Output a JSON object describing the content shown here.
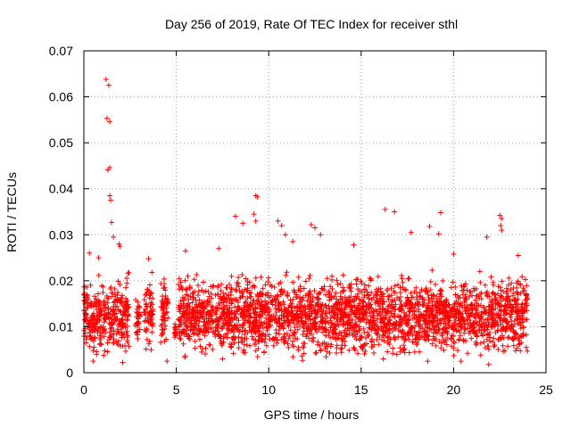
{
  "chart_data": {
    "type": "scatter",
    "title": "Day 256 of 2019, Rate Of TEC Index for receiver sthl",
    "xlabel": "GPS time / hours",
    "ylabel": "ROTI / TECUs",
    "xlim": [
      0,
      25
    ],
    "ylim": [
      0,
      0.07
    ],
    "xticks": [
      0,
      5,
      10,
      15,
      20,
      25
    ],
    "yticks": [
      0,
      0.01,
      0.02,
      0.03,
      0.04,
      0.05,
      0.06,
      0.07
    ],
    "xtick_labels": [
      "0",
      "5",
      "10",
      "15",
      "20",
      "25"
    ],
    "ytick_labels": [
      "0",
      "0.01",
      "0.02",
      "0.03",
      "0.04",
      "0.05",
      "0.06",
      "0.07"
    ],
    "grid": true,
    "marker": "+",
    "series_color": "#ff0000",
    "series": [
      {
        "name": "ROTI",
        "note": "dense cloud of points (values 0.002-0.025 TECU/s) spanning 0-24 h with gaps; listed below are envelope and outlier points",
        "points": [
          [
            1.2,
            0.0638
          ],
          [
            1.35,
            0.0625
          ],
          [
            1.25,
            0.0553
          ],
          [
            1.4,
            0.0546
          ],
          [
            1.3,
            0.0441
          ],
          [
            1.4,
            0.0446
          ],
          [
            1.4,
            0.0385
          ],
          [
            1.45,
            0.0375
          ],
          [
            1.5,
            0.0327
          ],
          [
            1.6,
            0.0295
          ],
          [
            1.9,
            0.028
          ],
          [
            1.95,
            0.0275
          ],
          [
            8.2,
            0.034
          ],
          [
            8.6,
            0.0325
          ],
          [
            9.3,
            0.0385
          ],
          [
            9.4,
            0.0382
          ],
          [
            9.2,
            0.0345
          ],
          [
            9.3,
            0.033
          ],
          [
            10.5,
            0.033
          ],
          [
            10.7,
            0.032
          ],
          [
            10.9,
            0.03
          ],
          [
            11.3,
            0.0285
          ],
          [
            12.3,
            0.0322
          ],
          [
            12.5,
            0.0315
          ],
          [
            12.8,
            0.03
          ],
          [
            16.3,
            0.0355
          ],
          [
            16.8,
            0.035
          ],
          [
            17.7,
            0.0305
          ],
          [
            18.7,
            0.0318
          ],
          [
            19.3,
            0.0348
          ],
          [
            19.2,
            0.0302
          ],
          [
            22.5,
            0.0342
          ],
          [
            22.6,
            0.0335
          ],
          [
            22.55,
            0.032
          ],
          [
            22.6,
            0.031
          ],
          [
            21.8,
            0.0295
          ],
          [
            0.3,
            0.026
          ],
          [
            0.8,
            0.025
          ],
          [
            3.5,
            0.0248
          ],
          [
            5.5,
            0.0265
          ],
          [
            7.3,
            0.027
          ],
          [
            14.6,
            0.0278
          ],
          [
            20.0,
            0.0258
          ],
          [
            23.5,
            0.0255
          ],
          [
            0.5,
            0.0025
          ],
          [
            2.1,
            0.0022
          ],
          [
            4.5,
            0.0025
          ],
          [
            7.5,
            0.003
          ],
          [
            9.4,
            0.0035
          ],
          [
            13.1,
            0.0035
          ],
          [
            16.2,
            0.003
          ],
          [
            18.6,
            0.0025
          ],
          [
            20.4,
            0.0025
          ],
          [
            21.9,
            0.0018
          ]
        ]
      }
    ],
    "density_windows": [
      [
        0.0,
        2.45,
        0.0016,
        0.023
      ],
      [
        2.8,
        3.05,
        0.006,
        0.017
      ],
      [
        3.25,
        3.75,
        0.003,
        0.024
      ],
      [
        4.15,
        4.55,
        0.0025,
        0.0225
      ],
      [
        4.9,
        5.0,
        0.006,
        0.012
      ],
      [
        5.1,
        24.0,
        0.0018,
        0.023
      ]
    ]
  }
}
